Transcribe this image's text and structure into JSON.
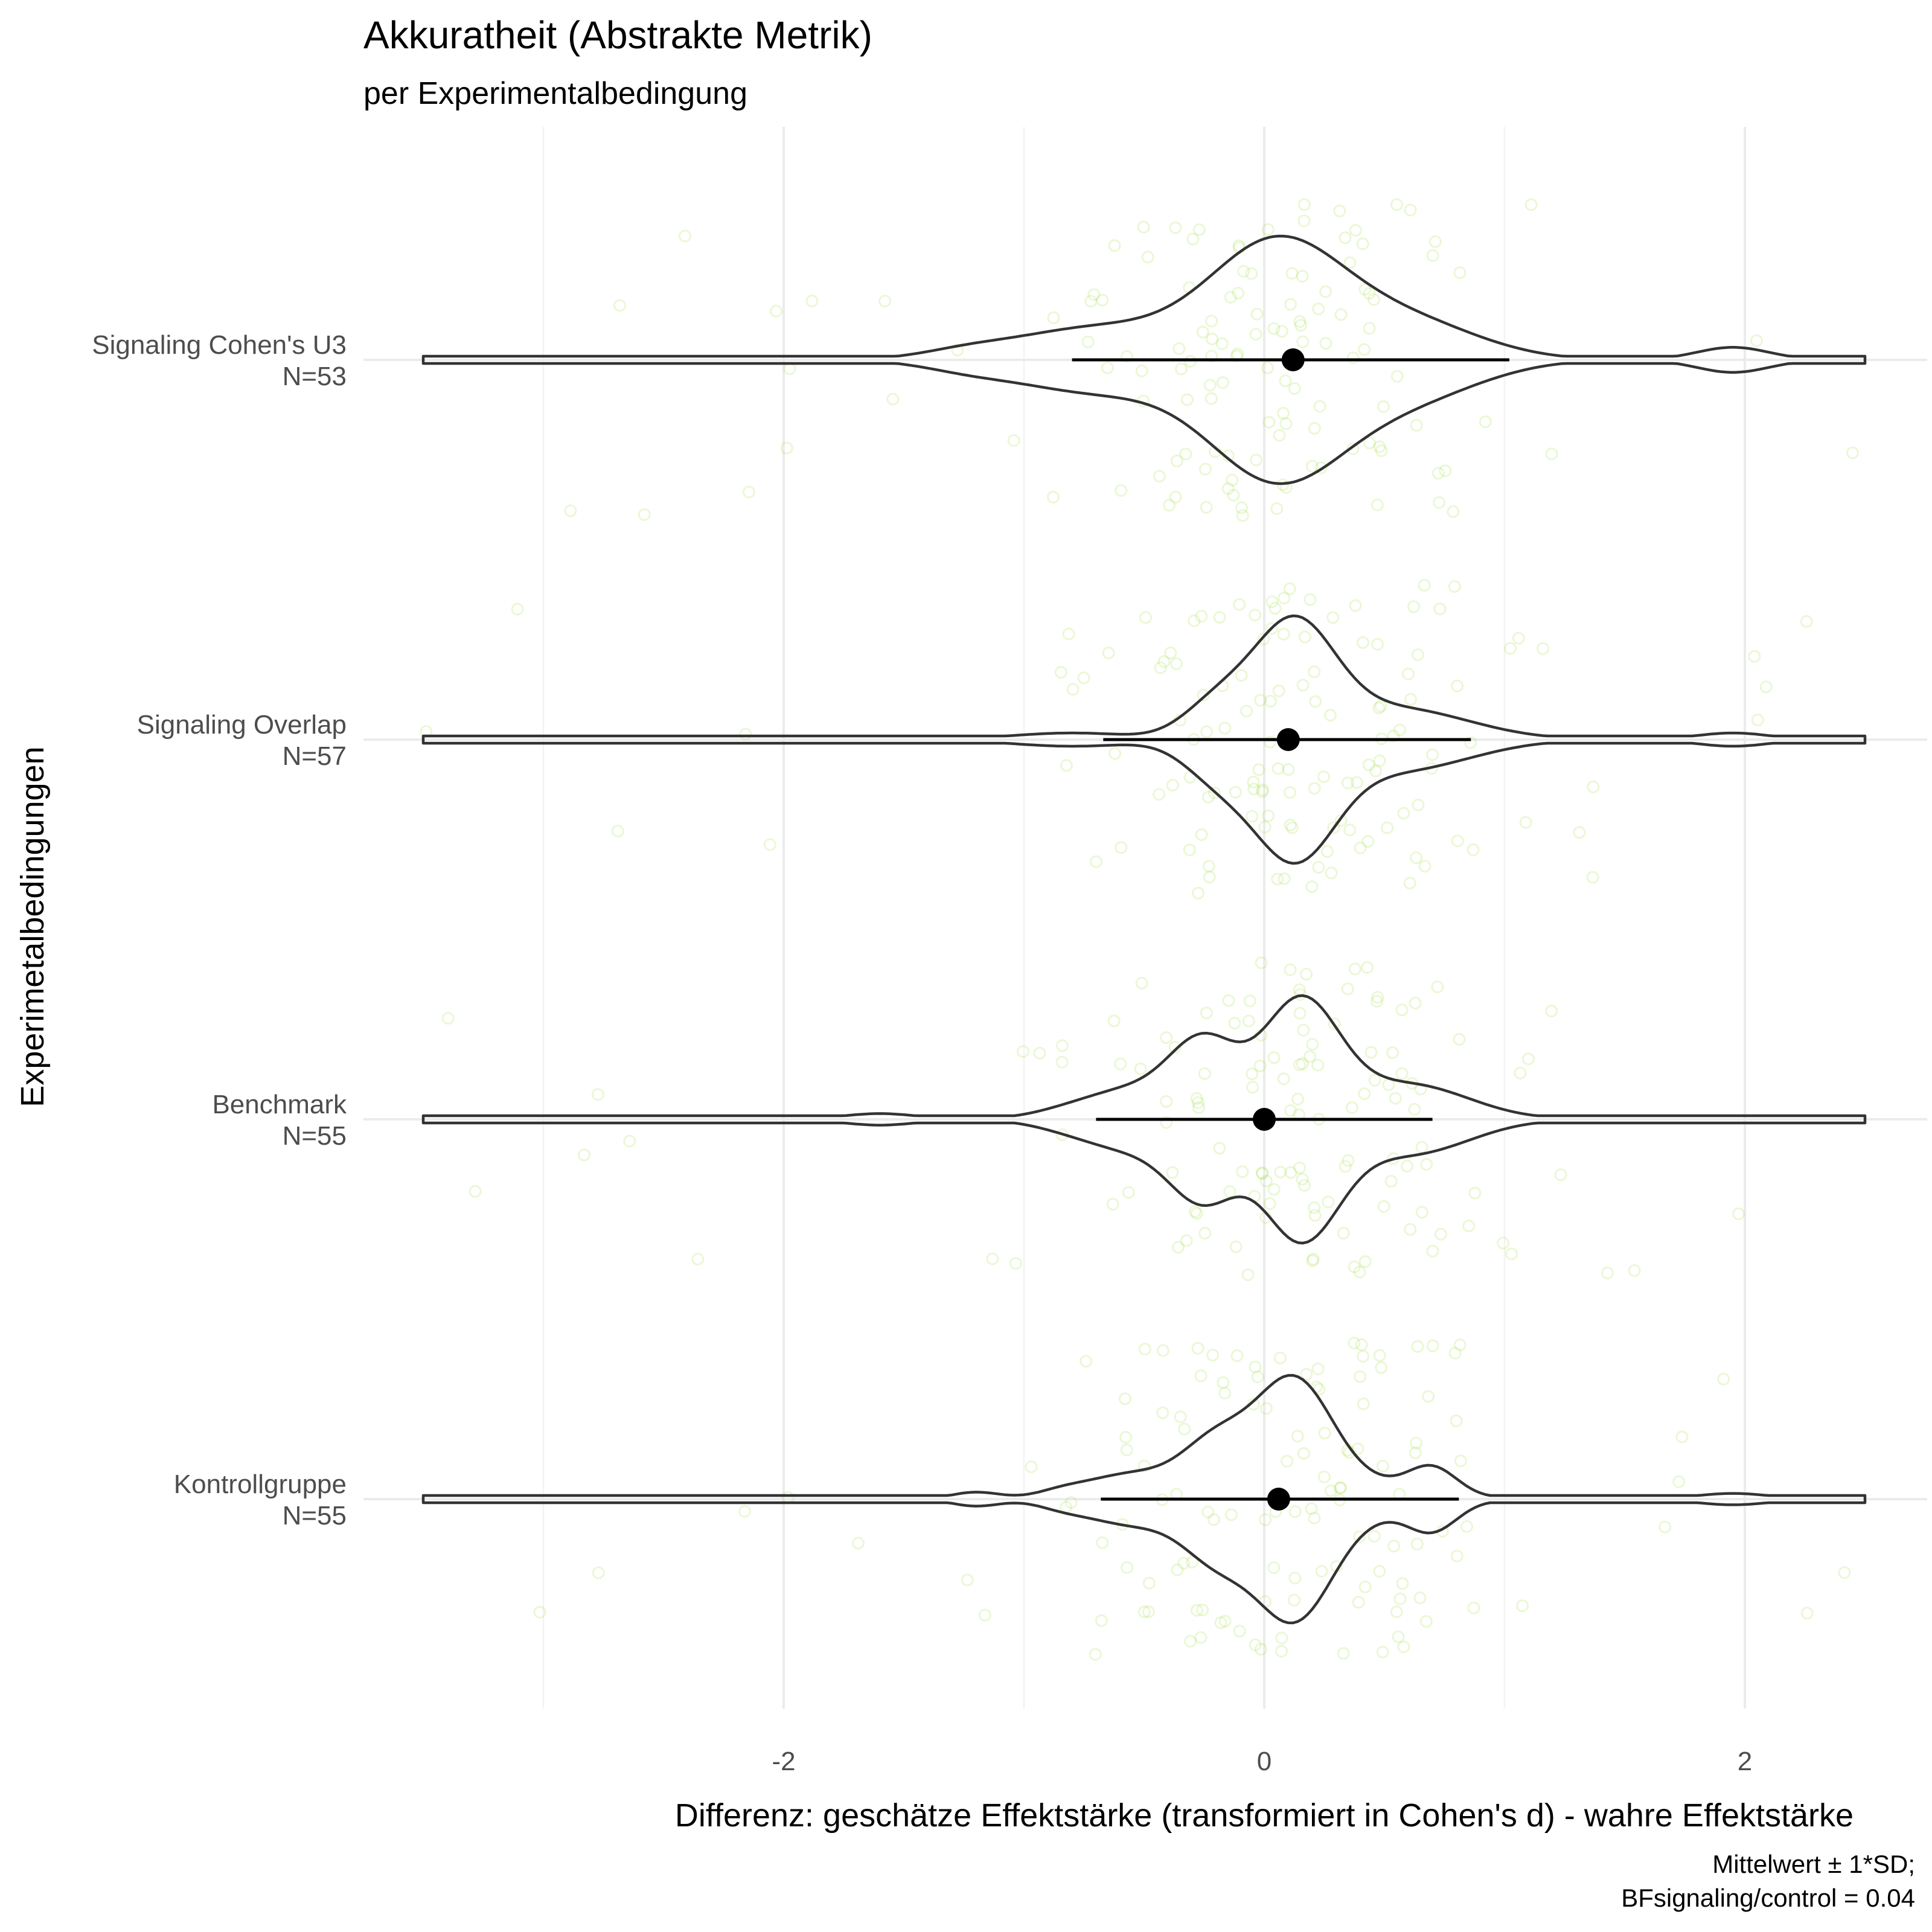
{
  "chart_data": {
    "type": "violin",
    "title": "Akkuratheit (Abstrakte Metrik)",
    "subtitle": "per Experimentalbedingung",
    "xlabel": "Differenz: geschätze Effektstärke (transformiert in Cohen's d) - wahre Effektstärke",
    "ylabel": "Experimetalbedingungen",
    "caption": [
      "Mittelwert ± 1*SD;",
      "BFsignaling/control = 0.04"
    ],
    "xlim": [
      -3.75,
      2.75
    ],
    "x_ticks": [
      -2,
      0,
      2
    ],
    "x_tick_labels": [
      "-2",
      "0",
      "2"
    ],
    "grid": true,
    "colors": {
      "points": "#7fd100",
      "violin": "#333333",
      "summary": "#000000"
    },
    "categories": [
      {
        "label": "Signaling Cohen's U3",
        "n_label": "N=53",
        "mean": 0.12,
        "sd_low": -0.8,
        "sd_high": 1.02,
        "min": -3.5,
        "max": 2.5
      },
      {
        "label": "Signaling Overlap",
        "n_label": "N=57",
        "mean": 0.1,
        "sd_low": -0.67,
        "sd_high": 0.86,
        "min": -3.5,
        "max": 2.5
      },
      {
        "label": "Benchmark",
        "n_label": "N=55",
        "mean": 0.0,
        "sd_low": -0.7,
        "sd_high": 0.7,
        "min": -3.5,
        "max": 2.5
      },
      {
        "label": "Kontrollgruppe",
        "n_label": "N=55",
        "mean": 0.06,
        "sd_low": -0.68,
        "sd_high": 0.81,
        "min": -3.5,
        "max": 2.5
      }
    ]
  }
}
